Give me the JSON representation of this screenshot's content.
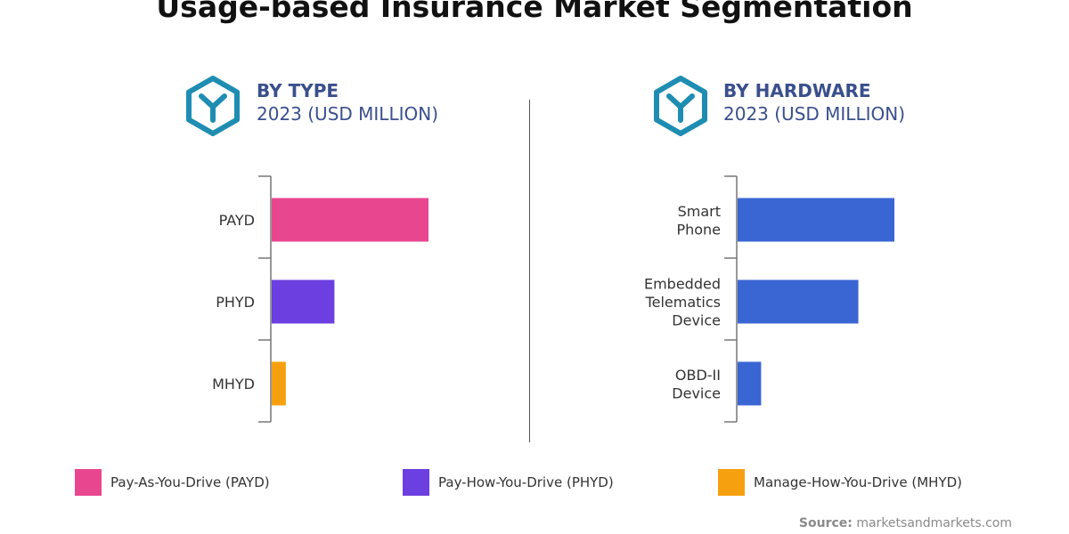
{
  "title": "Usage-based Insurance Market Segmentation",
  "left_panel": {
    "heading": "BY TYPE",
    "subheading": "2023 (USD MILLION)"
  },
  "right_panel": {
    "heading": "BY HARDWARE",
    "subheading": "2023 (USD MILLION)"
  },
  "colors": {
    "heading": "#3a4f8c",
    "icon": "#1f8db2",
    "payd": "#e94690",
    "phyd": "#6b3fe0",
    "mhyd": "#f7a00f",
    "hardware": "#3a66d4"
  },
  "chart_data": [
    {
      "type": "bar",
      "orientation": "horizontal",
      "categories": [
        "PAYD",
        "PHYD",
        "MHYD"
      ],
      "values": [
        100,
        40,
        9
      ],
      "colors": [
        "#e94690",
        "#6b3fe0",
        "#f7a00f"
      ]
    },
    {
      "type": "bar",
      "orientation": "horizontal",
      "categories": [
        [
          "Smart",
          "Phone"
        ],
        [
          "Embedded",
          "Telematics",
          "Device"
        ],
        [
          "OBD-II",
          "Device"
        ]
      ],
      "values": [
        100,
        77,
        15
      ],
      "colors": [
        "#3a66d4",
        "#3a66d4",
        "#3a66d4"
      ]
    }
  ],
  "legend": [
    {
      "label": "Pay-As-You-Drive (PAYD)",
      "color": "#e94690"
    },
    {
      "label": "Pay-How-You-Drive (PHYD)",
      "color": "#6b3fe0"
    },
    {
      "label": "Manage-How-You-Drive (MHYD)",
      "color": "#f7a00f"
    }
  ],
  "source": {
    "label": "Source:",
    "value": "marketsandmarkets.com"
  }
}
